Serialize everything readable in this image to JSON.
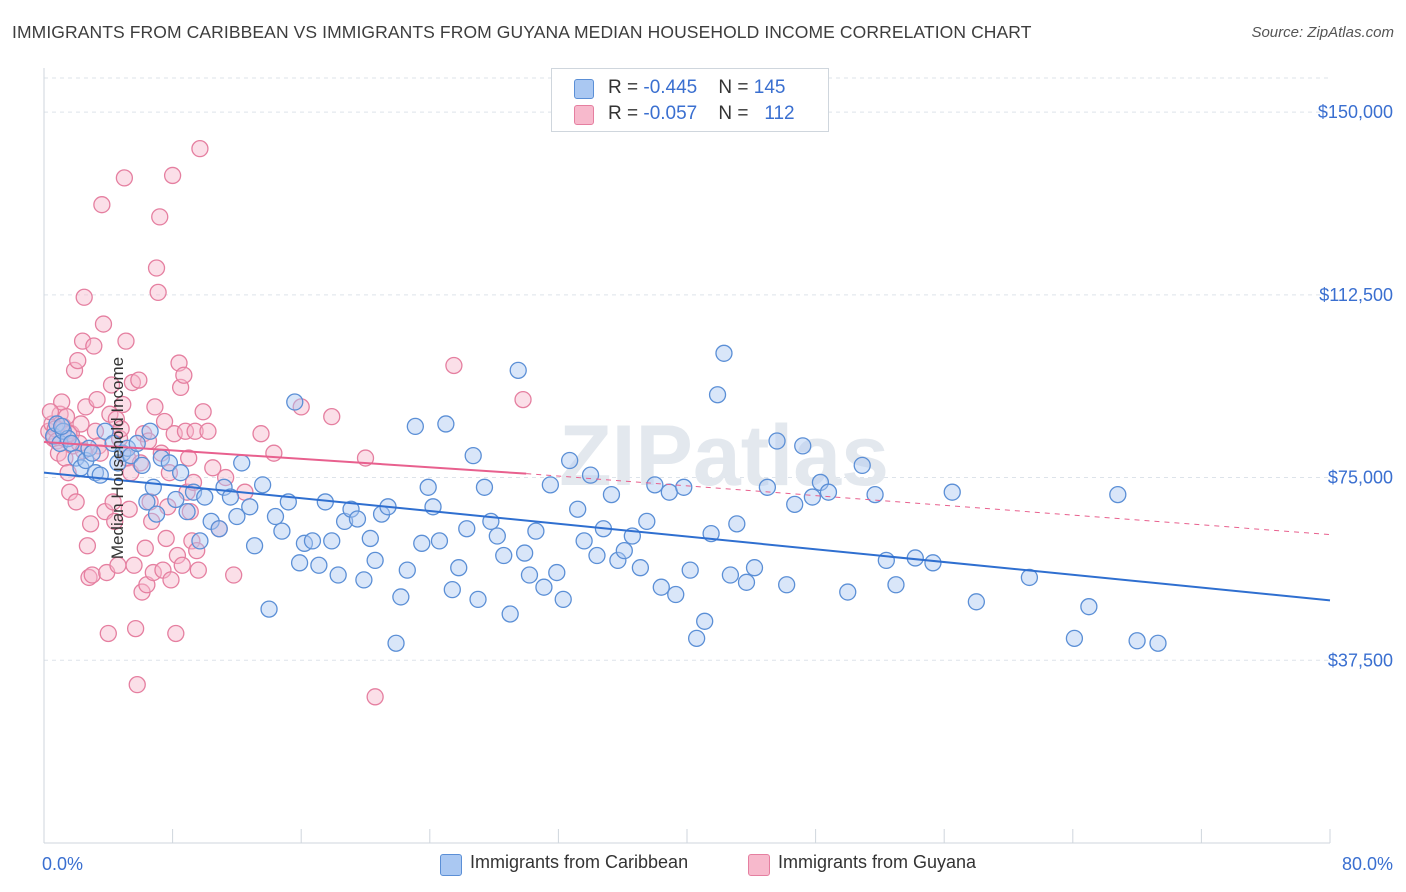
{
  "title": "IMMIGRANTS FROM CARIBBEAN VS IMMIGRANTS FROM GUYANA MEDIAN HOUSEHOLD INCOME CORRELATION CHART",
  "source": "Source: ZipAtlas.com",
  "watermark": "ZIPatlas",
  "legend": {
    "rows": [
      {
        "r_label": "R = ",
        "r_value": "-0.445",
        "n_label": "N = ",
        "n_value": "145"
      },
      {
        "r_label": "R = ",
        "r_value": "-0.057",
        "n_label": "N = ",
        "n_value": "112"
      }
    ]
  },
  "colors": {
    "caribbean_fill": "#aac8f2",
    "caribbean_stroke": "#5b8fd6",
    "caribbean_line": "#2f6fd0",
    "guyana_fill": "#f7b9cc",
    "guyana_stroke": "#e57fa0",
    "guyana_line": "#e8608e",
    "grid": "#dde3ea",
    "axis_text": "#3a6fd0"
  },
  "chart_data": {
    "type": "scatter",
    "title": "IMMIGRANTS FROM CARIBBEAN VS IMMIGRANTS FROM GUYANA MEDIAN HOUSEHOLD INCOME CORRELATION CHART",
    "xlabel": "",
    "ylabel": "Median Household Income",
    "xlim": [
      0,
      80
    ],
    "ylim": [
      0,
      157000
    ],
    "x_tick_labels": [
      "0.0%",
      "80.0%"
    ],
    "y_ticks": [
      37500,
      75000,
      112500,
      150000
    ],
    "y_tick_labels": [
      "$37,500",
      "$75,000",
      "$112,500",
      "$150,000"
    ],
    "grid": true,
    "legend_placement": "top-center",
    "series": [
      {
        "name": "Immigrants from Caribbean",
        "r": -0.445,
        "n": 145,
        "trend": {
          "x": [
            0,
            80
          ],
          "y": [
            76000,
            49800
          ]
        },
        "points": [
          [
            0.6,
            83500
          ],
          [
            0.8,
            86000
          ],
          [
            1.0,
            82000
          ],
          [
            1.2,
            84500
          ],
          [
            1.5,
            83000
          ],
          [
            1.7,
            82000
          ],
          [
            2.0,
            79000
          ],
          [
            2.3,
            77000
          ],
          [
            2.6,
            78500
          ],
          [
            2.8,
            81000
          ],
          [
            3.2,
            76000
          ],
          [
            3.5,
            75500
          ],
          [
            3.8,
            84500
          ],
          [
            4.3,
            82000
          ],
          [
            4.6,
            78000
          ],
          [
            4.9,
            80000
          ],
          [
            5.2,
            81000
          ],
          [
            5.4,
            79500
          ],
          [
            5.8,
            82000
          ],
          [
            6.1,
            77500
          ],
          [
            6.4,
            70000
          ],
          [
            6.8,
            73000
          ],
          [
            7.0,
            67500
          ],
          [
            7.3,
            79000
          ],
          [
            7.8,
            78000
          ],
          [
            8.2,
            70500
          ],
          [
            8.5,
            76000
          ],
          [
            8.9,
            68000
          ],
          [
            9.3,
            72000
          ],
          [
            9.7,
            62000
          ],
          [
            10.0,
            71000
          ],
          [
            10.4,
            66000
          ],
          [
            10.9,
            64500
          ],
          [
            11.2,
            73000
          ],
          [
            11.6,
            71000
          ],
          [
            12.0,
            67000
          ],
          [
            12.3,
            78000
          ],
          [
            12.8,
            69000
          ],
          [
            13.1,
            61000
          ],
          [
            13.6,
            73500
          ],
          [
            14.0,
            48000
          ],
          [
            14.4,
            67000
          ],
          [
            14.8,
            64000
          ],
          [
            15.2,
            70000
          ],
          [
            15.6,
            90500
          ],
          [
            15.9,
            57500
          ],
          [
            16.2,
            61500
          ],
          [
            16.7,
            62000
          ],
          [
            17.1,
            57000
          ],
          [
            17.5,
            70000
          ],
          [
            17.9,
            62000
          ],
          [
            18.3,
            55000
          ],
          [
            18.7,
            66000
          ],
          [
            19.1,
            68500
          ],
          [
            19.5,
            66500
          ],
          [
            19.9,
            54000
          ],
          [
            20.3,
            62500
          ],
          [
            20.6,
            58000
          ],
          [
            21.0,
            67500
          ],
          [
            21.4,
            69000
          ],
          [
            21.9,
            41000
          ],
          [
            22.2,
            50500
          ],
          [
            22.6,
            56000
          ],
          [
            23.1,
            85500
          ],
          [
            23.5,
            61500
          ],
          [
            23.9,
            73000
          ],
          [
            24.2,
            69000
          ],
          [
            24.6,
            62000
          ],
          [
            25.0,
            86000
          ],
          [
            25.4,
            52000
          ],
          [
            25.8,
            56500
          ],
          [
            26.3,
            64500
          ],
          [
            26.7,
            79500
          ],
          [
            27.0,
            50000
          ],
          [
            27.4,
            73000
          ],
          [
            27.8,
            66000
          ],
          [
            28.2,
            63000
          ],
          [
            28.6,
            59000
          ],
          [
            29.0,
            47000
          ],
          [
            29.5,
            97000
          ],
          [
            29.9,
            59500
          ],
          [
            30.2,
            55000
          ],
          [
            30.6,
            64000
          ],
          [
            31.1,
            52500
          ],
          [
            31.5,
            73500
          ],
          [
            31.9,
            55500
          ],
          [
            32.3,
            50000
          ],
          [
            32.7,
            78500
          ],
          [
            33.2,
            68500
          ],
          [
            33.6,
            62000
          ],
          [
            34.0,
            75500
          ],
          [
            34.4,
            59000
          ],
          [
            34.8,
            64500
          ],
          [
            35.3,
            71500
          ],
          [
            35.7,
            58000
          ],
          [
            36.1,
            60000
          ],
          [
            36.6,
            63000
          ],
          [
            37.1,
            56500
          ],
          [
            37.5,
            66000
          ],
          [
            38.0,
            73500
          ],
          [
            38.4,
            52500
          ],
          [
            38.9,
            72000
          ],
          [
            39.3,
            51000
          ],
          [
            39.8,
            73000
          ],
          [
            40.2,
            56000
          ],
          [
            40.6,
            42000
          ],
          [
            41.1,
            45500
          ],
          [
            41.5,
            63500
          ],
          [
            41.9,
            92000
          ],
          [
            42.3,
            100500
          ],
          [
            42.7,
            55000
          ],
          [
            43.1,
            65500
          ],
          [
            43.7,
            53500
          ],
          [
            44.2,
            56500
          ],
          [
            45.0,
            73000
          ],
          [
            45.6,
            82500
          ],
          [
            46.2,
            53000
          ],
          [
            46.7,
            69500
          ],
          [
            47.2,
            81500
          ],
          [
            47.8,
            71000
          ],
          [
            48.3,
            74000
          ],
          [
            48.8,
            72000
          ],
          [
            50.0,
            51500
          ],
          [
            50.9,
            77500
          ],
          [
            51.7,
            71500
          ],
          [
            52.4,
            58000
          ],
          [
            53.0,
            53000
          ],
          [
            54.2,
            58500
          ],
          [
            55.3,
            57500
          ],
          [
            56.5,
            72000
          ],
          [
            58.0,
            49500
          ],
          [
            61.3,
            54500
          ],
          [
            64.1,
            42000
          ],
          [
            65.0,
            48500
          ],
          [
            66.8,
            71500
          ],
          [
            68.0,
            41500
          ],
          [
            69.3,
            41000
          ],
          [
            1.1,
            85500
          ],
          [
            3.0,
            80000
          ],
          [
            6.6,
            84500
          ]
        ]
      },
      {
        "name": "Immigrants from Guyana",
        "r": -0.057,
        "n": 112,
        "trend": {
          "x": [
            0,
            30
          ],
          "y": [
            82300,
            75800
          ]
        },
        "trend_extension": {
          "x": [
            30,
            80
          ],
          "y": [
            75800,
            63300
          ]
        },
        "points": [
          [
            0.3,
            84500
          ],
          [
            0.5,
            86000
          ],
          [
            0.6,
            83000
          ],
          [
            0.7,
            85000
          ],
          [
            0.8,
            82500
          ],
          [
            0.9,
            80000
          ],
          [
            1.0,
            88000
          ],
          [
            1.1,
            90500
          ],
          [
            1.2,
            85500
          ],
          [
            1.3,
            79000
          ],
          [
            1.4,
            87500
          ],
          [
            1.5,
            76000
          ],
          [
            1.6,
            72000
          ],
          [
            1.7,
            84000
          ],
          [
            1.8,
            81500
          ],
          [
            1.9,
            97000
          ],
          [
            2.0,
            70000
          ],
          [
            2.1,
            99000
          ],
          [
            2.2,
            82000
          ],
          [
            2.3,
            86000
          ],
          [
            2.4,
            103000
          ],
          [
            2.5,
            112000
          ],
          [
            2.6,
            89500
          ],
          [
            2.7,
            61000
          ],
          [
            2.8,
            54500
          ],
          [
            2.9,
            65500
          ],
          [
            3.0,
            55000
          ],
          [
            3.1,
            102000
          ],
          [
            3.2,
            84500
          ],
          [
            3.3,
            91000
          ],
          [
            3.4,
            81500
          ],
          [
            3.5,
            80000
          ],
          [
            3.6,
            131000
          ],
          [
            3.7,
            106500
          ],
          [
            3.8,
            68000
          ],
          [
            3.9,
            55500
          ],
          [
            4.0,
            43000
          ],
          [
            4.1,
            88000
          ],
          [
            4.2,
            94000
          ],
          [
            4.3,
            70000
          ],
          [
            4.4,
            66000
          ],
          [
            4.5,
            87000
          ],
          [
            4.6,
            57000
          ],
          [
            4.7,
            83000
          ],
          [
            4.8,
            85000
          ],
          [
            4.9,
            90000
          ],
          [
            5.0,
            136500
          ],
          [
            5.1,
            103000
          ],
          [
            5.2,
            79000
          ],
          [
            5.3,
            68500
          ],
          [
            5.4,
            76000
          ],
          [
            5.5,
            94500
          ],
          [
            5.6,
            57000
          ],
          [
            5.7,
            44000
          ],
          [
            5.8,
            32500
          ],
          [
            5.9,
            95000
          ],
          [
            6.0,
            78000
          ],
          [
            6.1,
            51500
          ],
          [
            6.2,
            84000
          ],
          [
            6.3,
            60500
          ],
          [
            6.4,
            53000
          ],
          [
            6.5,
            82500
          ],
          [
            6.6,
            70000
          ],
          [
            6.7,
            66000
          ],
          [
            6.8,
            55500
          ],
          [
            6.9,
            89500
          ],
          [
            7.0,
            118000
          ],
          [
            7.1,
            113000
          ],
          [
            7.2,
            128500
          ],
          [
            7.3,
            80000
          ],
          [
            7.4,
            56000
          ],
          [
            7.5,
            86500
          ],
          [
            7.6,
            62500
          ],
          [
            7.7,
            69000
          ],
          [
            7.8,
            76000
          ],
          [
            7.9,
            54000
          ],
          [
            8.0,
            137000
          ],
          [
            8.1,
            84000
          ],
          [
            8.2,
            43000
          ],
          [
            8.3,
            59000
          ],
          [
            8.4,
            98500
          ],
          [
            8.5,
            93500
          ],
          [
            8.6,
            57000
          ],
          [
            8.7,
            96000
          ],
          [
            8.8,
            84500
          ],
          [
            8.9,
            72000
          ],
          [
            9.0,
            79000
          ],
          [
            9.1,
            68000
          ],
          [
            9.2,
            62000
          ],
          [
            9.3,
            74000
          ],
          [
            9.4,
            84500
          ],
          [
            9.5,
            60000
          ],
          [
            9.6,
            56000
          ],
          [
            9.7,
            142500
          ],
          [
            9.9,
            88500
          ],
          [
            10.2,
            84500
          ],
          [
            10.5,
            77000
          ],
          [
            10.9,
            64500
          ],
          [
            11.3,
            75000
          ],
          [
            11.8,
            55000
          ],
          [
            12.5,
            72000
          ],
          [
            13.5,
            84000
          ],
          [
            14.3,
            80000
          ],
          [
            16.0,
            89500
          ],
          [
            17.9,
            87500
          ],
          [
            20.0,
            79000
          ],
          [
            20.6,
            30000
          ],
          [
            25.5,
            98000
          ],
          [
            29.8,
            91000
          ],
          [
            0.4,
            88500
          ],
          [
            1.55,
            84000
          ],
          [
            2.45,
            80500
          ]
        ]
      }
    ]
  }
}
